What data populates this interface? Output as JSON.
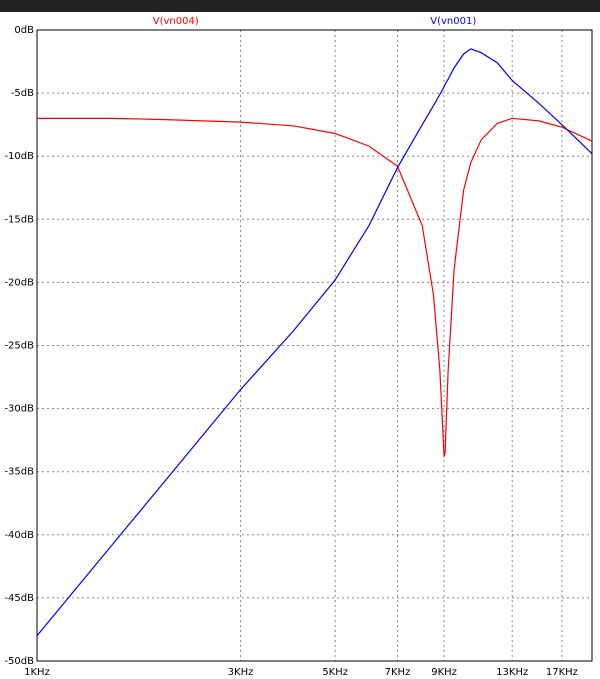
{
  "chart_data": {
    "type": "line",
    "x": [
      1000,
      1500,
      2000,
      3000,
      4000,
      5000,
      6000,
      7000,
      8000,
      8500,
      8800,
      9000,
      9050,
      9200,
      9500,
      10000,
      10400,
      11000,
      12000,
      13000,
      15000,
      17000,
      20000
    ],
    "series": [
      {
        "name": "V(vn004)",
        "color": "#ff0000",
        "values": [
          -7.0,
          -7.0,
          -7.1,
          -7.3,
          -7.6,
          -8.2,
          -9.2,
          -10.8,
          -15.5,
          -21,
          -27,
          -33.8,
          -33.5,
          -27,
          -19,
          -12.7,
          -10.5,
          -8.7,
          -7.4,
          -7.0,
          -7.2,
          -7.7,
          -8.8
        ]
      },
      {
        "name": "V(vn001)",
        "color": "#0000ff",
        "values": [
          -48,
          -40.8,
          -35.7,
          -28.5,
          -23.8,
          -19.8,
          -15.5,
          -10.9,
          -7.5,
          -6.0,
          -5.1,
          -4.5,
          -4.3,
          -3.9,
          -3.0,
          -1.9,
          -1.5,
          -1.8,
          -2.6,
          -4.0,
          -5.8,
          -7.5,
          -9.8
        ]
      }
    ],
    "xlim": [
      1000,
      20000
    ],
    "xscale": "log",
    "xticks": [
      {
        "value": 1000,
        "label": "1KHz"
      },
      {
        "value": 3000,
        "label": "3KHz"
      },
      {
        "value": 5000,
        "label": "5KHz"
      },
      {
        "value": 7000,
        "label": "7KHz"
      },
      {
        "value": 9000,
        "label": "9KHz"
      },
      {
        "value": 13000,
        "label": "13KHz"
      },
      {
        "value": 17000,
        "label": "17KHz"
      }
    ],
    "ylim": [
      -50,
      0
    ],
    "yticks": [
      {
        "value": 0,
        "label": "0dB"
      },
      {
        "value": -5,
        "label": "-5dB"
      },
      {
        "value": -10,
        "label": "-10dB"
      },
      {
        "value": -15,
        "label": "-15dB"
      },
      {
        "value": -20,
        "label": "-20dB"
      },
      {
        "value": -25,
        "label": "-25dB"
      },
      {
        "value": -30,
        "label": "-30dB"
      },
      {
        "value": -35,
        "label": "-35dB"
      },
      {
        "value": -40,
        "label": "-40dB"
      },
      {
        "value": -45,
        "label": "-45dB"
      },
      {
        "value": -50,
        "label": "-50dB"
      }
    ],
    "grid": true
  }
}
